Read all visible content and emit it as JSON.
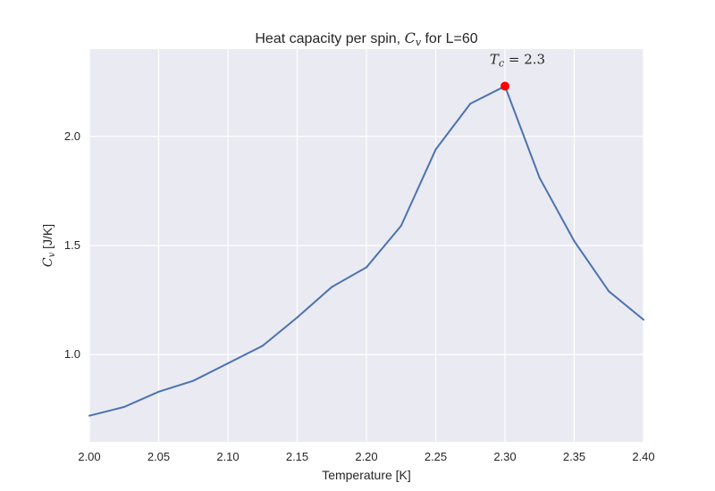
{
  "chart_data": {
    "type": "line",
    "title_prefix": "Heat capacity per spin, ",
    "title_symbol": "C",
    "title_symbol_sub": "v",
    "title_suffix": " for L=60",
    "xlabel": "Temperature [K]",
    "ylabel_symbol": "C",
    "ylabel_symbol_sub": "v",
    "ylabel_suffix": " [J/K]",
    "xlim": [
      2.0,
      2.4
    ],
    "ylim": [
      0.6,
      2.4
    ],
    "xticks": [
      2.0,
      2.05,
      2.1,
      2.15,
      2.2,
      2.25,
      2.3,
      2.35,
      2.4
    ],
    "xtick_labels": [
      "2.00",
      "2.05",
      "2.10",
      "2.15",
      "2.20",
      "2.25",
      "2.30",
      "2.35",
      "2.40"
    ],
    "yticks": [
      1.0,
      1.5,
      2.0
    ],
    "ytick_labels": [
      "1.0",
      "1.5",
      "2.0"
    ],
    "grid": true,
    "x": [
      2.0,
      2.025,
      2.05,
      2.075,
      2.1,
      2.125,
      2.15,
      2.175,
      2.2,
      2.225,
      2.25,
      2.275,
      2.3,
      2.325,
      2.35,
      2.375,
      2.4
    ],
    "values": [
      0.72,
      0.76,
      0.83,
      0.88,
      0.96,
      1.04,
      1.17,
      1.31,
      1.4,
      1.59,
      1.94,
      2.15,
      2.23,
      1.81,
      1.52,
      1.29,
      1.16
    ],
    "peak": {
      "x": 2.3,
      "y": 2.23
    },
    "annotation": {
      "symbol": "T",
      "sub": "c",
      "text": " = 2.3"
    },
    "colors": {
      "line": "#4c72b0",
      "marker": "#ff0000",
      "background": "#eaeaf2",
      "grid": "#ffffff"
    }
  }
}
